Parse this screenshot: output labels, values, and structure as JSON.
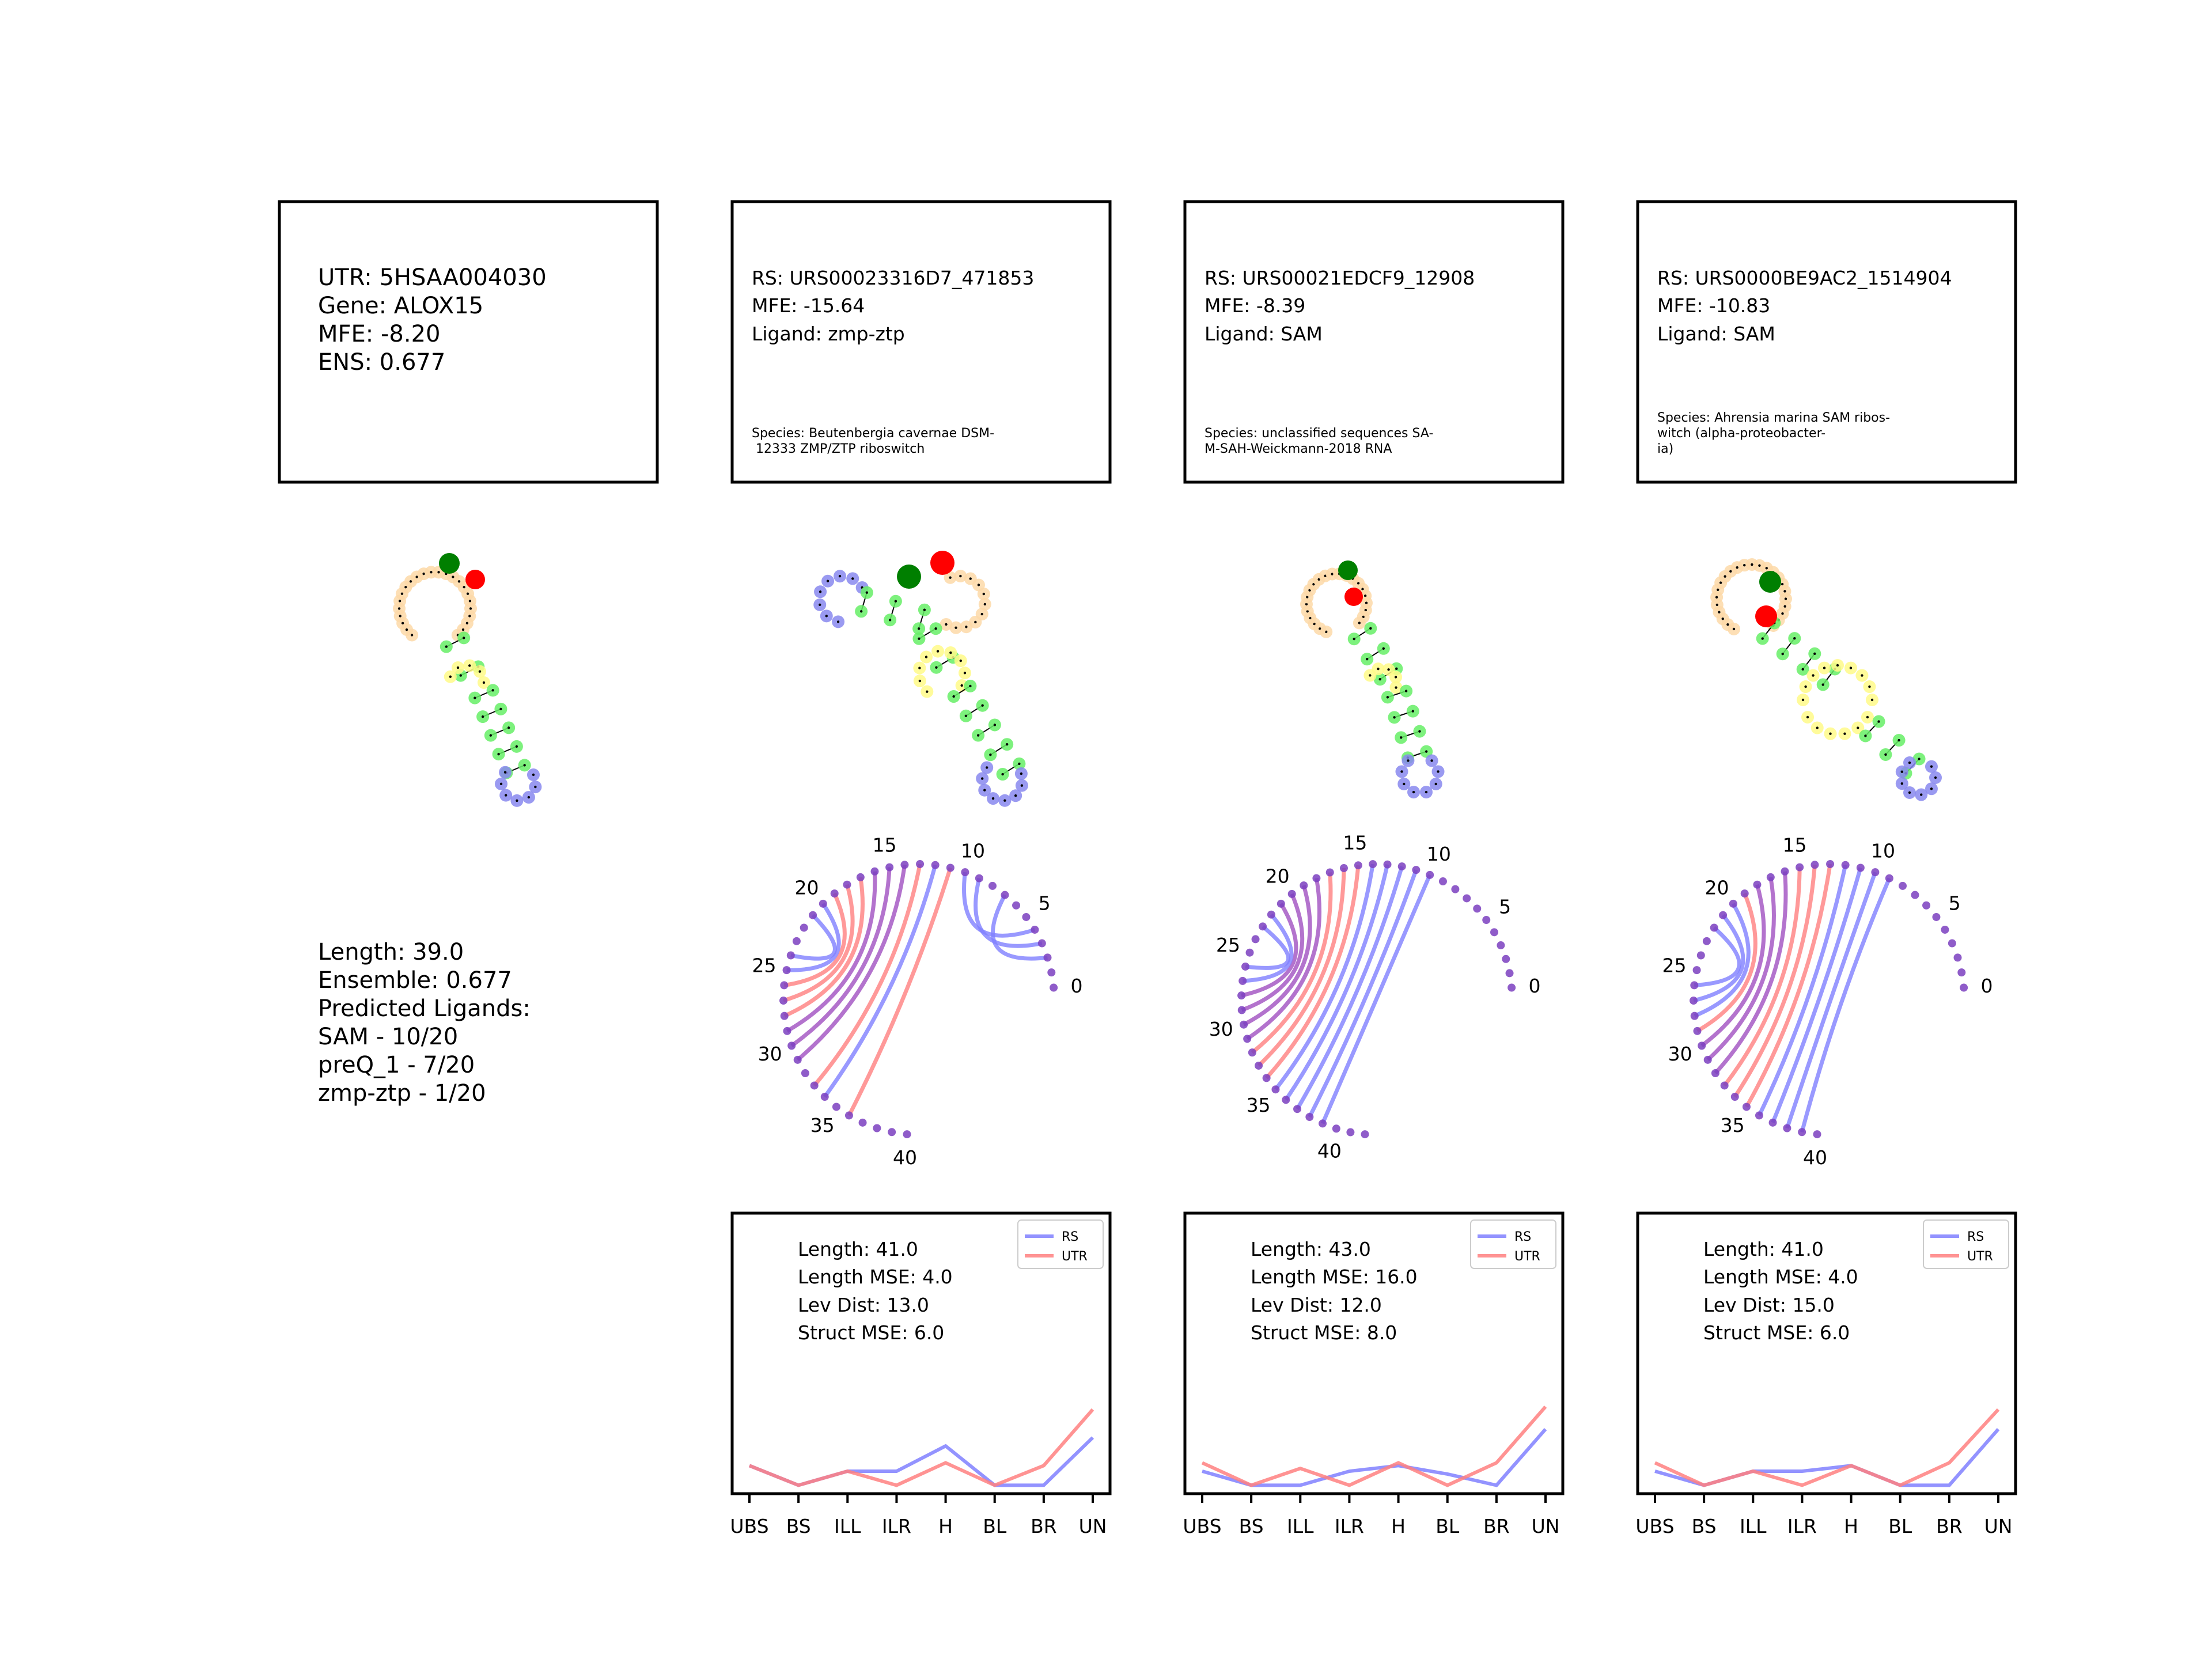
{
  "utr_card": {
    "lines": [
      "UTR: 5HSAA004030",
      "Gene: ALOX15",
      "MFE: -8.20",
      "ENS: 0.677"
    ]
  },
  "utr_summary": {
    "lines": [
      "Length: 39.0",
      "Ensemble: 0.677",
      "Predicted Ligands:",
      "SAM - 10/20",
      "preQ_1 - 7/20",
      "zmp-ztp - 1/20"
    ]
  },
  "colors": {
    "rs_line": "#8080ff",
    "utr_line": "#ff8080",
    "stem": "#66ee66",
    "hairpin": "#8888ee",
    "bulge": "#fffa88",
    "unpaired": "#fdd9a8",
    "start_marker": "#007f00",
    "end_marker": "#ff0000",
    "arc_dot": "#7b3fc0"
  },
  "rs_cards": [
    {
      "lines": [
        "RS: URS00023316D7_471853",
        "MFE: -15.64",
        "Ligand: zmp-ztp"
      ],
      "species": [
        "Species: Beutenbergia cavernae DSM-",
        " 12333 ZMP/ZTP riboswitch"
      ],
      "arc_labels": [
        "0",
        "5",
        "10",
        "15",
        "20",
        "25",
        "30",
        "35",
        "40"
      ],
      "metrics": [
        "Length: 41.0",
        "Length MSE: 4.0",
        "Lev Dist: 13.0",
        "Struct MSE: 6.0"
      ]
    },
    {
      "lines": [
        "RS: URS00021EDCF9_12908",
        "MFE: -8.39",
        "Ligand: SAM"
      ],
      "species": [
        "Species: unclassified sequences SA-",
        "M-SAH-Weickmann-2018 RNA"
      ],
      "arc_labels": [
        "0",
        "5",
        "10",
        "15",
        "20",
        "25",
        "30",
        "35",
        "40"
      ],
      "metrics": [
        "Length: 43.0",
        "Length MSE: 16.0",
        "Lev Dist: 12.0",
        "Struct MSE: 8.0"
      ]
    },
    {
      "lines": [
        "RS: URS0000BE9AC2_1514904",
        "MFE: -10.83",
        "Ligand: SAM"
      ],
      "species": [
        "Species: Ahrensia marina SAM ribos-",
        "witch (alpha-proteobacter-",
        "ia)"
      ],
      "arc_labels": [
        "0",
        "5",
        "10",
        "15",
        "20",
        "25",
        "30",
        "35",
        "40"
      ],
      "metrics": [
        "Length: 41.0",
        "Length MSE: 4.0",
        "Lev Dist: 15.0",
        "Struct MSE: 6.0"
      ]
    }
  ],
  "chart_data": [
    {
      "type": "line",
      "categories": [
        "UBS",
        "BS",
        "ILL",
        "ILR",
        "H",
        "BL",
        "BR",
        "UN"
      ],
      "legend": "top-right",
      "ylim": [
        0,
        10
      ],
      "series": [
        {
          "name": "RS",
          "values": [
            1.0,
            0.3,
            0.8,
            0.8,
            1.7,
            0.3,
            0.3,
            2.0
          ]
        },
        {
          "name": "UTR",
          "values": [
            1.0,
            0.3,
            0.8,
            0.3,
            1.1,
            0.3,
            1.0,
            3.0
          ]
        }
      ]
    },
    {
      "type": "line",
      "categories": [
        "UBS",
        "BS",
        "ILL",
        "ILR",
        "H",
        "BL",
        "BR",
        "UN"
      ],
      "legend": "top-right",
      "ylim": [
        0,
        10
      ],
      "series": [
        {
          "name": "RS",
          "values": [
            0.8,
            0.3,
            0.3,
            0.8,
            1.0,
            0.7,
            0.3,
            2.3
          ]
        },
        {
          "name": "UTR",
          "values": [
            1.1,
            0.3,
            0.9,
            0.3,
            1.1,
            0.3,
            1.1,
            3.1
          ]
        }
      ]
    },
    {
      "type": "line",
      "categories": [
        "UBS",
        "BS",
        "ILL",
        "ILR",
        "H",
        "BL",
        "BR",
        "UN"
      ],
      "legend": "top-right",
      "ylim": [
        0,
        10
      ],
      "series": [
        {
          "name": "RS",
          "values": [
            0.8,
            0.3,
            0.8,
            0.8,
            1.0,
            0.3,
            0.3,
            2.3
          ]
        },
        {
          "name": "UTR",
          "values": [
            1.1,
            0.3,
            0.8,
            0.3,
            1.0,
            0.3,
            1.1,
            3.0
          ]
        }
      ]
    }
  ]
}
